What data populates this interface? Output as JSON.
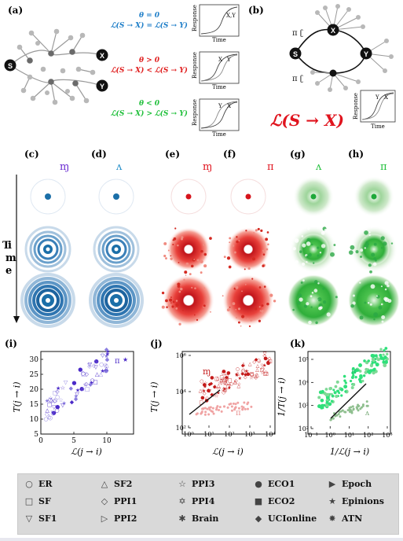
{
  "panels": {
    "a": {
      "label": "(a)",
      "eq1_theta": "θ = 0",
      "eq1": "ℒ(S → X) = ℒ(S → Y)",
      "eq1_color": "#1e7ec8",
      "eq2_theta": "θ > 0",
      "eq2": "ℒ(S → X) < ℒ(S → Y)",
      "eq2_color": "#e02020",
      "eq3_theta": "θ < 0",
      "eq3": "ℒ(S → X) > ℒ(S → Y)",
      "eq3_color": "#1fbf3a",
      "node_s": "S",
      "node_x": "X",
      "node_y": "Y",
      "response_label": "Response",
      "time_label": "Time",
      "curve_labels_1": "X,Y",
      "curve_x": "X",
      "curve_y": "Y"
    },
    "b": {
      "label": "(b)",
      "node_s": "S",
      "node_x": "X",
      "node_y": "Y",
      "big_formula": "ℒ(S → X)",
      "big_formula_color": "#e0141e",
      "response_label": "Response",
      "time_label": "Time",
      "curve_y": "Y",
      "curve_x": "X"
    },
    "row_labels": [
      "(c)",
      "(d)",
      "(e)",
      "(f)",
      "(g)",
      "(h)"
    ],
    "row_marks": [
      "ɱ",
      "ʌ",
      "ɱ",
      "π",
      "ʌ",
      "π"
    ],
    "row_mark_colors": [
      "#6a2bd1",
      "#1e8cc8",
      "#e0141e",
      "#e0141e",
      "#1fbf3a",
      "#1fbf3a"
    ],
    "time_axis_label": "Time",
    "i": {
      "label": "(i)",
      "ylabel": "T(j → i)",
      "xlabel": "ℒ(j → i)",
      "xticks": [
        "0",
        "5",
        "10"
      ],
      "yticks": [
        "5",
        "10",
        "15",
        "20",
        "25",
        "30"
      ]
    },
    "j": {
      "label": "(j)",
      "ylabel": "T(j → i)",
      "xlabel": "ℒ(j → i)",
      "xticks": [
        "10⁰",
        "10¹",
        "10²",
        "10³",
        "10⁴"
      ],
      "yticks": [
        "10²",
        "10⁴",
        "10⁶"
      ]
    },
    "k": {
      "label": "(k)",
      "ylabel": "1/T(j → i)",
      "xlabel": "1/ℒ(j → i)",
      "xticks": [
        "10⁻¹",
        "10⁰",
        "10¹",
        "10²",
        "10³"
      ],
      "yticks": [
        "10²",
        "10³",
        "10⁴",
        "10⁵"
      ]
    }
  },
  "legend": {
    "items": [
      {
        "sym": "○",
        "name": "ER"
      },
      {
        "sym": "△",
        "name": "SF2"
      },
      {
        "sym": "☆",
        "name": "PPI3"
      },
      {
        "sym": "●",
        "name": "ECO1"
      },
      {
        "sym": "▶",
        "name": "Epoch"
      },
      {
        "sym": "□",
        "name": "SF"
      },
      {
        "sym": "◇",
        "name": "PPI1"
      },
      {
        "sym": "✡",
        "name": "PPI4"
      },
      {
        "sym": "■",
        "name": "ECO2"
      },
      {
        "sym": "★",
        "name": "Epinions"
      },
      {
        "sym": "▽",
        "name": "SF1"
      },
      {
        "sym": "▷",
        "name": "PPI2"
      },
      {
        "sym": "✱",
        "name": "Brain"
      },
      {
        "sym": "◆",
        "name": "UCIonline"
      },
      {
        "sym": "✸",
        "name": "ATN"
      }
    ]
  }
}
